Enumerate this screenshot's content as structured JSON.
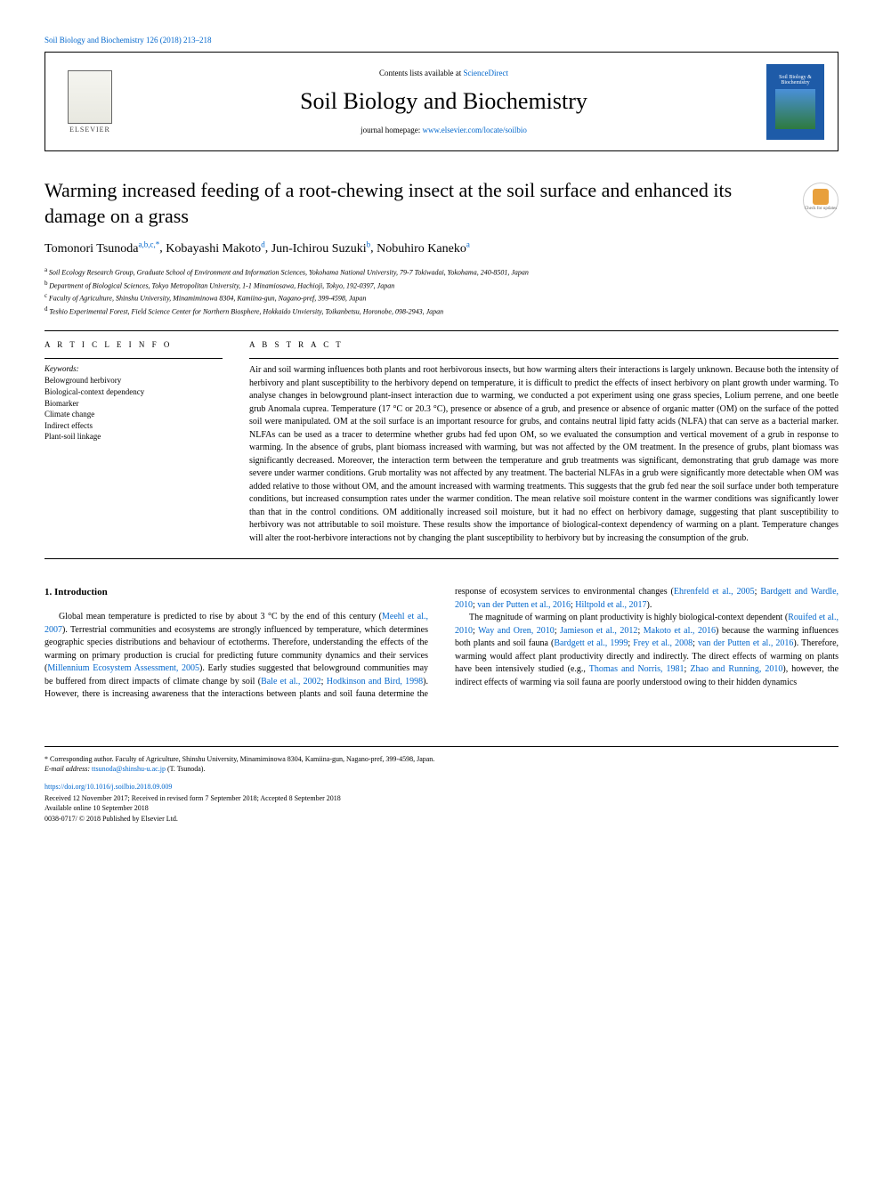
{
  "top_citation": "Soil Biology and Biochemistry 126 (2018) 213–218",
  "header": {
    "contents_prefix": "Contents lists available at ",
    "contents_link": "ScienceDirect",
    "journal": "Soil Biology and Biochemistry",
    "homepage_prefix": "journal homepage: ",
    "homepage_link": "www.elsevier.com/locate/soilbio",
    "publisher": "ELSEVIER",
    "cover_text": "Soil Biology & Biochemistry"
  },
  "title": "Warming increased feeding of a root-chewing insect at the soil surface and enhanced its damage on a grass",
  "update_badge": "Check for updates",
  "authors_html": "Tomonori Tsunoda",
  "author_sups": [
    "a,b,c,*",
    "d",
    "b",
    "a"
  ],
  "authors": [
    {
      "name": "Tomonori Tsunoda",
      "sup": "a,b,c,*"
    },
    {
      "name": "Kobayashi Makoto",
      "sup": "d"
    },
    {
      "name": "Jun-Ichirou Suzuki",
      "sup": "b"
    },
    {
      "name": "Nobuhiro Kaneko",
      "sup": "a"
    }
  ],
  "affiliations": [
    {
      "sup": "a",
      "text": "Soil Ecology Research Group, Graduate School of Environment and Information Sciences, Yokohama National University, 79-7 Tokiwadai, Yokohama, 240-8501, Japan"
    },
    {
      "sup": "b",
      "text": "Department of Biological Sciences, Tokyo Metropolitan University, 1-1 Minamiosawa, Hachioji, Tokyo, 192-0397, Japan"
    },
    {
      "sup": "c",
      "text": "Faculty of Agriculture, Shinshu University, Minamiminowa 8304, Kamiina-gun, Nagano-pref, 399-4598, Japan"
    },
    {
      "sup": "d",
      "text": "Teshio Experimental Forest, Field Science Center for Northern Biosphere, Hokkaido Unviersity, Toikanbetsu, Horonobe, 098-2943, Japan"
    }
  ],
  "article_info_label": "A R T I C L E  I N F O",
  "abstract_label": "A B S T R A C T",
  "keywords_label": "Keywords:",
  "keywords": [
    "Belowground herbivory",
    "Biological-context dependency",
    "Biomarker",
    "Climate change",
    "Indirect effects",
    "Plant-soil linkage"
  ],
  "abstract": "Air and soil warming influences both plants and root herbivorous insects, but how warming alters their interactions is largely unknown. Because both the intensity of herbivory and plant susceptibility to the herbivory depend on temperature, it is difficult to predict the effects of insect herbivory on plant growth under warming. To analyse changes in belowground plant-insect interaction due to warming, we conducted a pot experiment using one grass species, Lolium perrene, and one beetle grub Anomala cuprea. Temperature (17 °C or 20.3 °C), presence or absence of a grub, and presence or absence of organic matter (OM) on the surface of the potted soil were manipulated. OM at the soil surface is an important resource for grubs, and contains neutral lipid fatty acids (NLFA) that can serve as a bacterial marker. NLFAs can be used as a tracer to determine whether grubs had fed upon OM, so we evaluated the consumption and vertical movement of a grub in response to warming. In the absence of grubs, plant biomass increased with warming, but was not affected by the OM treatment. In the presence of grubs, plant biomass was significantly decreased. Moreover, the interaction term between the temperature and grub treatments was significant, demonstrating that grub damage was more severe under warmer conditions. Grub mortality was not affected by any treatment. The bacterial NLFAs in a grub were significantly more detectable when OM was added relative to those without OM, and the amount increased with warming treatments. This suggests that the grub fed near the soil surface under both temperature conditions, but increased consumption rates under the warmer condition. The mean relative soil moisture content in the warmer conditions was significantly lower than that in the control conditions. OM additionally increased soil moisture, but it had no effect on herbivory damage, suggesting that plant susceptibility to herbivory was not attributable to soil moisture. These results show the importance of biological-context dependency of warming on a plant. Temperature changes will alter the root-herbivore interactions not by changing the plant susceptibility to herbivory but by increasing the consumption of the grub.",
  "intro_heading": "1. Introduction",
  "intro_paragraphs": [
    "Global mean temperature is predicted to rise by about 3 °C by the end of this century (Meehl et al., 2007). Terrestrial communities and ecosystems are strongly influenced by temperature, which determines geographic species distributions and behaviour of ectotherms. Therefore, understanding the effects of the warming on primary production is crucial for predicting future community dynamics and their services (Millennium Ecosystem Assessment, 2005). Early studies suggested that belowground communities may be buffered from direct impacts of climate change by soil (Bale et al., 2002; Hodkinson and Bird, 1998). However, there is increasing awareness that the interactions between plants and soil fauna determine the response of ecosystem services to environmental changes (Ehrenfeld et al., 2005; Bardgett and Wardle, 2010; van der Putten et al., 2016; Hiltpold et al., 2017).",
    "The magnitude of warming on plant productivity is highly biological-context dependent (Rouifed et al., 2010; Way and Oren, 2010; Jamieson et al., 2012; Makoto et al., 2016) because the warming influences both plants and soil fauna (Bardgett et al., 1999; Frey et al., 2008; van der Putten et al., 2016). Therefore, warming would affect plant productivity directly and indirectly. The direct effects of warming on plants have been intensively studied (e.g., Thomas and Norris, 1981; Zhao and Running, 2010), however, the indirect effects of warming via soil fauna are poorly understood owing to their hidden dynamics"
  ],
  "intro_citations": [
    "Meehl et al., 2007",
    "Millennium Ecosystem Assessment, 2005",
    "Bale et al., 2002",
    "Hodkinson and Bird, 1998",
    "Ehrenfeld et al., 2005",
    "Bardgett and Wardle, 2010",
    "van der Putten et al., 2016",
    "Hiltpold et al., 2017",
    "Rouifed et al., 2010",
    "Way and Oren, 2010",
    "Jamieson et al., 2012",
    "Makoto et al., 2016",
    "Bardgett et al., 1999",
    "Frey et al., 2008",
    "Thomas and Norris, 1981",
    "Zhao and Running, 2010"
  ],
  "footnote": {
    "corresponding": "* Corresponding author. Faculty of Agriculture, Shinshu University, Minamiminowa 8304, Kamiina-gun, Nagano-pref, 399-4598, Japan.",
    "email_label": "E-mail address: ",
    "email": "ttsunoda@shinshu-u.ac.jp",
    "email_suffix": " (T. Tsunoda)."
  },
  "doi": "https://doi.org/10.1016/j.soilbio.2018.09.009",
  "pub_lines": [
    "Received 12 November 2017; Received in revised form 7 September 2018; Accepted 8 September 2018",
    "Available online 10 September 2018",
    "0038-0717/ © 2018 Published by Elsevier Ltd."
  ],
  "colors": {
    "link": "#0066cc",
    "cover_bg": "#1e5ba8",
    "badge_accent": "#e8a03c"
  }
}
